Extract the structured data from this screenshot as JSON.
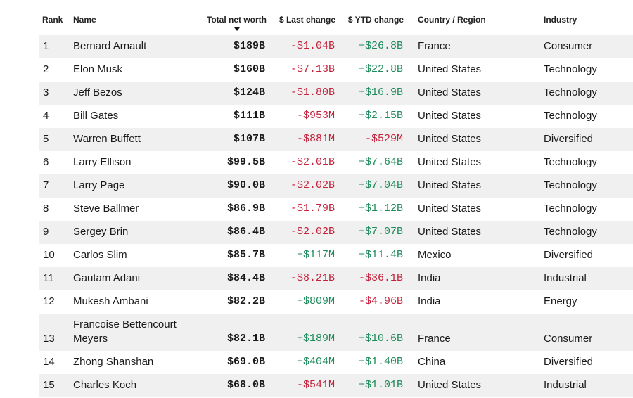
{
  "colors": {
    "negative": "#c4213b",
    "positive": "#1e8a5c",
    "row_shade": "#f0f0f0"
  },
  "columns": {
    "rank": "Rank",
    "name": "Name",
    "worth": "Total net worth",
    "last": "$ Last change",
    "ytd": "$ YTD change",
    "country": "Country / Region",
    "industry": "Industry"
  },
  "sort": {
    "column": "Total net worth",
    "direction": "descending",
    "icon": "sort-down-icon"
  },
  "rows": [
    {
      "rank": "1",
      "name": "Bernard Arnault",
      "worth": "$189B",
      "last": "-$1.04B",
      "ytd": "+$26.8B",
      "country": "France",
      "industry": "Consumer"
    },
    {
      "rank": "2",
      "name": "Elon Musk",
      "worth": "$160B",
      "last": "-$7.13B",
      "ytd": "+$22.8B",
      "country": "United States",
      "industry": "Technology"
    },
    {
      "rank": "3",
      "name": "Jeff Bezos",
      "worth": "$124B",
      "last": "-$1.80B",
      "ytd": "+$16.9B",
      "country": "United States",
      "industry": "Technology"
    },
    {
      "rank": "4",
      "name": "Bill Gates",
      "worth": "$111B",
      "last": "-$953M",
      "ytd": "+$2.15B",
      "country": "United States",
      "industry": "Technology"
    },
    {
      "rank": "5",
      "name": "Warren Buffett",
      "worth": "$107B",
      "last": "-$881M",
      "ytd": "-$529M",
      "country": "United States",
      "industry": "Diversified"
    },
    {
      "rank": "6",
      "name": "Larry Ellison",
      "worth": "$99.5B",
      "last": "-$2.01B",
      "ytd": "+$7.64B",
      "country": "United States",
      "industry": "Technology"
    },
    {
      "rank": "7",
      "name": "Larry Page",
      "worth": "$90.0B",
      "last": "-$2.02B",
      "ytd": "+$7.04B",
      "country": "United States",
      "industry": "Technology"
    },
    {
      "rank": "8",
      "name": "Steve Ballmer",
      "worth": "$86.9B",
      "last": "-$1.79B",
      "ytd": "+$1.12B",
      "country": "United States",
      "industry": "Technology"
    },
    {
      "rank": "9",
      "name": "Sergey Brin",
      "worth": "$86.4B",
      "last": "-$2.02B",
      "ytd": "+$7.07B",
      "country": "United States",
      "industry": "Technology"
    },
    {
      "rank": "10",
      "name": "Carlos Slim",
      "worth": "$85.7B",
      "last": "+$117M",
      "ytd": "+$11.4B",
      "country": "Mexico",
      "industry": "Diversified"
    },
    {
      "rank": "11",
      "name": "Gautam Adani",
      "worth": "$84.4B",
      "last": "-$8.21B",
      "ytd": "-$36.1B",
      "country": "India",
      "industry": "Industrial"
    },
    {
      "rank": "12",
      "name": "Mukesh Ambani",
      "worth": "$82.2B",
      "last": "+$809M",
      "ytd": "-$4.96B",
      "country": "India",
      "industry": "Energy"
    },
    {
      "rank": "13",
      "name": "Francoise Bettencourt Meyers",
      "worth": "$82.1B",
      "last": "+$189M",
      "ytd": "+$10.6B",
      "country": "France",
      "industry": "Consumer"
    },
    {
      "rank": "14",
      "name": "Zhong Shanshan",
      "worth": "$69.0B",
      "last": "+$404M",
      "ytd": "+$1.40B",
      "country": "China",
      "industry": "Diversified"
    },
    {
      "rank": "15",
      "name": "Charles Koch",
      "worth": "$68.0B",
      "last": "-$541M",
      "ytd": "+$1.01B",
      "country": "United States",
      "industry": "Industrial"
    }
  ]
}
